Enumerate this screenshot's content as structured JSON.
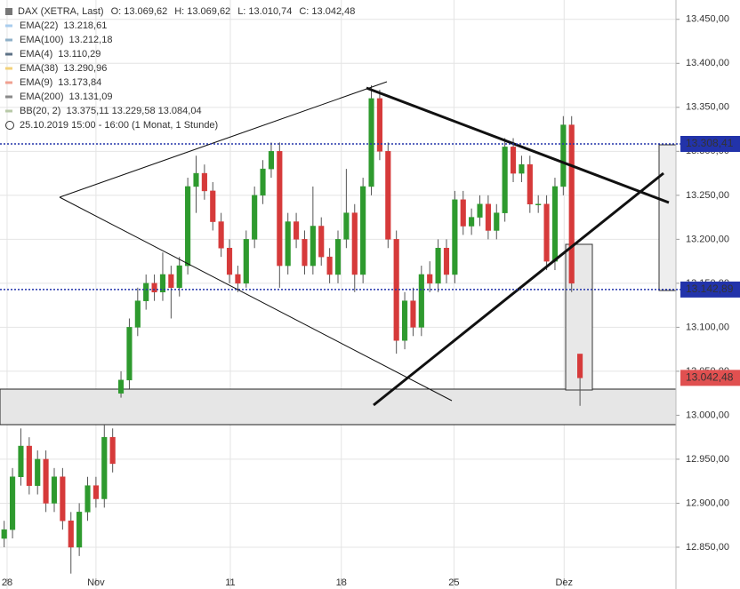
{
  "chart_data": {
    "type": "candlestick",
    "symbol": "DAX (XETRA, Last)",
    "ohlc_labels": [
      "O: 13.069,62",
      "H: 13.069,62",
      "L: 13.010,74",
      "C: 13.042,48"
    ],
    "indicators": [
      {
        "name": "EMA(22)",
        "value": "13.218,61",
        "color": "#a9cdee"
      },
      {
        "name": "EMA(100)",
        "value": "13.212,18",
        "color": "#8fb0c8"
      },
      {
        "name": "EMA(4)",
        "value": "13.110,29",
        "color": "#5d7286"
      },
      {
        "name": "EMA(38)",
        "value": "13.290,96",
        "color": "#f3d27a"
      },
      {
        "name": "EMA(9)",
        "value": "13.173,84",
        "color": "#f0a090"
      },
      {
        "name": "EMA(200)",
        "value": "13.131,09",
        "color": "#8a8a8a"
      },
      {
        "name": "BB(20, 2)",
        "value": "13.375,11  13.229,58  13.084,04",
        "color": "#b8c9a8"
      }
    ],
    "period": "25.10.2019 15:00 - 16:00   (1 Monat, 1 Stunde)",
    "up_color": "#2e9a2e",
    "down_color": "#d63a3a",
    "open": [
      12860,
      12870,
      12930,
      12965,
      12920,
      12950,
      12900,
      12930,
      12880,
      12850,
      12890,
      12920,
      12905,
      12975,
      13025,
      13040,
      13100,
      13130,
      13150,
      13140,
      13160,
      13145,
      13170,
      13260,
      13275,
      13255,
      13220,
      13190,
      13160,
      13150,
      13200,
      13250,
      13280,
      13300,
      13170,
      13220,
      13200,
      13170,
      13215,
      13180,
      13160,
      13200,
      13230,
      13160,
      13260,
      13360,
      13300,
      13200,
      13085,
      13130,
      13100,
      13160,
      13150,
      13190,
      13160,
      13245,
      13215,
      13225,
      13240,
      13210,
      13230,
      13305,
      13275,
      13285,
      13240,
      13240,
      13175,
      13260,
      13330,
      13069.62
    ],
    "high": [
      12880,
      12940,
      12985,
      12975,
      12960,
      12960,
      12940,
      12940,
      12890,
      12900,
      12930,
      12930,
      12990,
      12985,
      13050,
      13110,
      13145,
      13160,
      13160,
      13185,
      13170,
      13180,
      13270,
      13295,
      13285,
      13265,
      13230,
      13200,
      13170,
      13210,
      13260,
      13290,
      13310,
      13310,
      13230,
      13230,
      13210,
      13260,
      13225,
      13190,
      13210,
      13280,
      13240,
      13270,
      13375,
      13370,
      13310,
      13210,
      13140,
      13145,
      13170,
      13175,
      13200,
      13200,
      13255,
      13255,
      13235,
      13250,
      13250,
      13240,
      13315,
      13315,
      13295,
      13295,
      13250,
      13250,
      13270,
      13340,
      13340,
      13069.62
    ],
    "low": [
      12850,
      12860,
      12920,
      12910,
      12910,
      12890,
      12890,
      12870,
      12820,
      12840,
      12880,
      12895,
      12895,
      12935,
      13020,
      13030,
      13090,
      13120,
      13130,
      13130,
      13110,
      13135,
      13160,
      13230,
      13245,
      13210,
      13180,
      13150,
      13140,
      13145,
      13190,
      13240,
      13270,
      13145,
      13160,
      13190,
      13160,
      13160,
      13170,
      13150,
      13150,
      13190,
      13140,
      13150,
      13250,
      13290,
      13190,
      13070,
      13075,
      13090,
      13090,
      13140,
      13140,
      13150,
      13150,
      13205,
      13205,
      13215,
      13200,
      13200,
      13220,
      13265,
      13265,
      13230,
      13230,
      13165,
      13165,
      13250,
      13140,
      13010.74
    ],
    "close": [
      12870,
      12930,
      12965,
      12920,
      12950,
      12900,
      12930,
      12880,
      12850,
      12890,
      12920,
      12905,
      12975,
      12945,
      13040,
      13100,
      13130,
      13150,
      13140,
      13160,
      13145,
      13170,
      13260,
      13275,
      13255,
      13220,
      13190,
      13160,
      13150,
      13200,
      13250,
      13280,
      13300,
      13170,
      13220,
      13200,
      13170,
      13215,
      13180,
      13160,
      13200,
      13230,
      13160,
      13260,
      13360,
      13300,
      13200,
      13085,
      13130,
      13100,
      13160,
      13150,
      13190,
      13160,
      13245,
      13215,
      13225,
      13240,
      13210,
      13230,
      13305,
      13275,
      13285,
      13240,
      13240,
      13175,
      13260,
      13330,
      13150,
      13042.48
    ],
    "xlim": [
      -0.5,
      80.5
    ],
    "xticks": [
      {
        "value": 0.35,
        "label": "28"
      },
      {
        "value": 11,
        "label": "Nov"
      },
      {
        "value": 27.1,
        "label": "11"
      },
      {
        "value": 40.4,
        "label": "18"
      },
      {
        "value": 53.9,
        "label": "25"
      },
      {
        "value": 67.1,
        "label": "Dez"
      }
    ],
    "ylim": [
      12802.5,
      13472
    ],
    "yticks": [
      {
        "value": 12850,
        "label": "12.850,00"
      },
      {
        "value": 12900,
        "label": "12.900,00"
      },
      {
        "value": 12950,
        "label": "12.950,00"
      },
      {
        "value": 13000,
        "label": "13.000,00"
      },
      {
        "value": 13050,
        "label": "13.050,00"
      },
      {
        "value": 13100,
        "label": "13.100,00"
      },
      {
        "value": 13150,
        "label": "13.150,00"
      },
      {
        "value": 13200,
        "label": "13.200,00"
      },
      {
        "value": 13250,
        "label": "13.250,00"
      },
      {
        "value": 13300,
        "label": "13.300,00"
      },
      {
        "value": 13350,
        "label": "13.350,00"
      },
      {
        "value": 13400,
        "label": "13.400,00"
      },
      {
        "value": 13450,
        "label": "13.450,00"
      }
    ],
    "price_lines": [
      {
        "value": 13308.41,
        "label": "13.308,41",
        "color": "#2233aa"
      },
      {
        "value": 13142.89,
        "label": "13.142,89",
        "color": "#2233aa"
      }
    ],
    "last_price": {
      "value": 13042.48,
      "label": "13.042,48",
      "color": "#e05050"
    },
    "grid": true
  }
}
